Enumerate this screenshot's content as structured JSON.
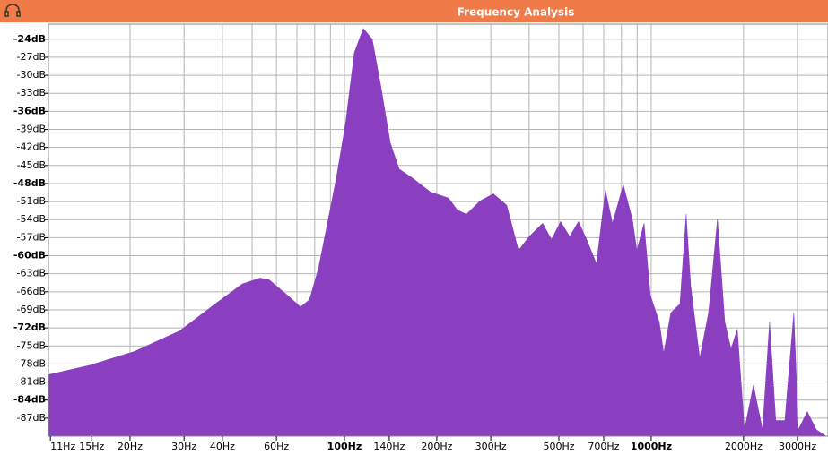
{
  "chart_data": {
    "type": "area",
    "title": "Frequency Analysis",
    "color": "#8a3fc0",
    "log_x": true,
    "grid": true,
    "x": [
      10.8,
      14.8,
      20.7,
      29.0,
      37.9,
      46.4,
      53.1,
      56.8,
      65.0,
      71.9,
      76.9,
      82.3,
      88.0,
      94.1,
      100.7,
      107.7,
      115.2,
      123.2,
      131.8,
      141.0,
      150.8,
      166.8,
      190.8,
      218.3,
      233.5,
      249.8,
      276.5,
      305.8,
      338.2,
      369.3,
      400.1,
      442.6,
      473.3,
      506.7,
      542.0,
      579.7,
      619.4,
      663.1,
      709.3,
      748.2,
      811.0,
      868.0,
      897.5,
      948,
      993,
      1062,
      1099,
      1159,
      1241,
      1300,
      1346,
      1439,
      1538,
      1645,
      1738,
      1820,
      1909,
      2014,
      2155,
      2306,
      2432,
      2547,
      2727,
      2917,
      3019,
      3228,
      3452,
      3692
    ],
    "values": [
      -79.8,
      -78.2,
      -75.9,
      -72.5,
      -68.0,
      -64.7,
      -63.7,
      -64.0,
      -66.5,
      -68.5,
      -67.3,
      -62.1,
      -54.6,
      -47.1,
      -38.2,
      -26.2,
      -22.2,
      -24.0,
      -32.2,
      -41.2,
      -45.6,
      -47.1,
      -49.4,
      -50.4,
      -52.4,
      -53.1,
      -50.9,
      -49.7,
      -51.6,
      -59.1,
      -56.8,
      -54.6,
      -57.3,
      -54.3,
      -56.8,
      -54.3,
      -57.6,
      -61.3,
      -49.1,
      -54.6,
      -48.2,
      -53.9,
      -59.1,
      -54.6,
      -66.5,
      -71.0,
      -76.2,
      -69.5,
      -68.0,
      -53.1,
      -65.0,
      -77.0,
      -69.5,
      -53.9,
      -71.0,
      -75.5,
      -72.2,
      -88.9,
      -81.5,
      -88.9,
      -71.0,
      -87.4,
      -87.4,
      -69.5,
      -88.9,
      -85.9,
      -88.9,
      -89.9
    ],
    "xlim": [
      10.84,
      3770
    ],
    "ylim": [
      -90,
      -21.5
    ],
    "xticks": [
      {
        "value": 11,
        "label": "11Hz"
      },
      {
        "value": 15,
        "label": "15Hz"
      },
      {
        "value": 20,
        "label": "20Hz"
      },
      {
        "value": 30,
        "label": "30Hz"
      },
      {
        "value": 40,
        "label": "40Hz"
      },
      {
        "value": 60,
        "label": "60Hz"
      },
      {
        "value": 100,
        "label": "100Hz"
      },
      {
        "value": 140,
        "label": "140Hz"
      },
      {
        "value": 200,
        "label": "200Hz"
      },
      {
        "value": 300,
        "label": "300Hz"
      },
      {
        "value": 500,
        "label": "500Hz"
      },
      {
        "value": 700,
        "label": "700Hz"
      },
      {
        "value": 1000,
        "label": "1000Hz"
      },
      {
        "value": 2000,
        "label": "2000Hz"
      },
      {
        "value": 3000,
        "label": "3000Hz"
      }
    ],
    "xgrid": [
      20,
      30,
      40,
      50,
      60,
      70,
      80,
      90,
      100,
      200,
      300,
      400,
      500,
      600,
      700,
      800,
      900,
      1000,
      2000,
      3000
    ],
    "yticks": [
      {
        "value": -24,
        "label": "-24dB"
      },
      {
        "value": -27,
        "label": "-27dB"
      },
      {
        "value": -30,
        "label": "-30dB"
      },
      {
        "value": -33,
        "label": "-33dB"
      },
      {
        "value": -36,
        "label": "-36dB"
      },
      {
        "value": -39,
        "label": "-39dB"
      },
      {
        "value": -42,
        "label": "-42dB"
      },
      {
        "value": -45,
        "label": "-45dB"
      },
      {
        "value": -48,
        "label": "-48dB"
      },
      {
        "value": -51,
        "label": "-51dB"
      },
      {
        "value": -54,
        "label": "-54dB"
      },
      {
        "value": -57,
        "label": "-57dB"
      },
      {
        "value": -60,
        "label": "-60dB"
      },
      {
        "value": -63,
        "label": "-63dB"
      },
      {
        "value": -66,
        "label": "-66dB"
      },
      {
        "value": -69,
        "label": "-69dB"
      },
      {
        "value": -72,
        "label": "-72dB"
      },
      {
        "value": -75,
        "label": "-75dB"
      },
      {
        "value": -78,
        "label": "-78dB"
      },
      {
        "value": -81,
        "label": "-81dB"
      },
      {
        "value": -84,
        "label": "-84dB"
      },
      {
        "value": -87,
        "label": "-87dB"
      }
    ]
  }
}
